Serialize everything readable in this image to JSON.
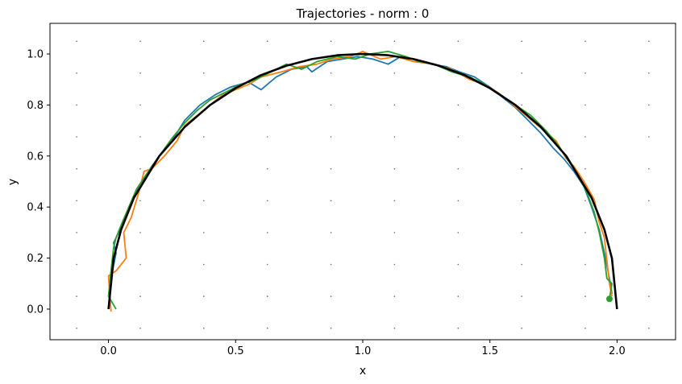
{
  "chart_data": {
    "type": "line",
    "title": "Trajectories - norm : 0",
    "xlabel": "x",
    "ylabel": "y",
    "xlim": [
      -0.23,
      2.23
    ],
    "ylim": [
      -0.12,
      1.12
    ],
    "xticks": [
      0.0,
      0.5,
      1.0,
      1.5,
      2.0
    ],
    "yticks": [
      0.0,
      0.2,
      0.4,
      0.6,
      0.8,
      1.0
    ],
    "xtick_labels": [
      "0.0",
      "0.5",
      "1.0",
      "1.5",
      "2.0"
    ],
    "ytick_labels": [
      "0.0",
      "0.2",
      "0.4",
      "0.6",
      "0.8",
      "1.0"
    ],
    "grid": "dotted points",
    "reference_curve": {
      "description": "semicircle center (1, 0), radius 1",
      "color": "#000000",
      "x": [
        0.0,
        0.02,
        0.05,
        0.1,
        0.2,
        0.3,
        0.4,
        0.5,
        0.6,
        0.7,
        0.8,
        0.9,
        1.0,
        1.1,
        1.2,
        1.3,
        1.4,
        1.5,
        1.6,
        1.7,
        1.8,
        1.9,
        1.95,
        1.98,
        2.0
      ],
      "y": [
        0.0,
        0.199,
        0.312,
        0.436,
        0.6,
        0.714,
        0.8,
        0.866,
        0.917,
        0.954,
        0.98,
        0.995,
        1.0,
        0.995,
        0.98,
        0.954,
        0.917,
        0.866,
        0.8,
        0.714,
        0.6,
        0.436,
        0.312,
        0.199,
        0.0
      ]
    },
    "series": [
      {
        "color": "#1f77b4",
        "x": [
          0.0,
          0.01,
          0.03,
          0.02,
          0.05,
          0.08,
          0.12,
          0.17,
          0.2,
          0.25,
          0.3,
          0.36,
          0.42,
          0.48,
          0.55,
          0.6,
          0.66,
          0.72,
          0.78,
          0.8,
          0.86,
          0.92,
          0.98,
          1.04,
          1.1,
          1.15,
          1.2,
          1.27,
          1.33,
          1.38,
          1.44,
          1.5,
          1.55,
          1.6,
          1.65,
          1.7,
          1.75,
          1.79,
          1.83,
          1.87,
          1.9,
          1.93,
          1.95,
          1.97,
          1.98
        ],
        "y": [
          0.05,
          0.12,
          0.22,
          0.26,
          0.32,
          0.4,
          0.48,
          0.56,
          0.6,
          0.66,
          0.74,
          0.8,
          0.84,
          0.87,
          0.89,
          0.86,
          0.91,
          0.94,
          0.95,
          0.93,
          0.97,
          0.98,
          0.99,
          0.98,
          0.96,
          0.99,
          0.98,
          0.96,
          0.95,
          0.93,
          0.91,
          0.87,
          0.83,
          0.79,
          0.74,
          0.69,
          0.63,
          0.59,
          0.54,
          0.48,
          0.4,
          0.31,
          0.22,
          0.12,
          0.06
        ]
      },
      {
        "color": "#ff7f0e",
        "x": [
          0.01,
          0.0,
          0.03,
          0.07,
          0.06,
          0.09,
          0.12,
          0.14,
          0.17,
          0.22,
          0.27,
          0.3,
          0.35,
          0.4,
          0.45,
          0.5,
          0.55,
          0.6,
          0.68,
          0.75,
          0.82,
          0.88,
          0.95,
          1.0,
          1.07,
          1.13,
          1.2,
          1.28,
          1.35,
          1.42,
          1.48,
          1.53,
          1.58,
          1.64,
          1.7,
          1.76,
          1.8,
          1.83,
          1.87,
          1.91,
          1.93,
          1.95,
          1.97,
          1.98
        ],
        "y": [
          -0.01,
          0.13,
          0.15,
          0.2,
          0.3,
          0.36,
          0.46,
          0.54,
          0.55,
          0.6,
          0.66,
          0.72,
          0.76,
          0.8,
          0.84,
          0.86,
          0.88,
          0.91,
          0.93,
          0.95,
          0.96,
          0.98,
          0.99,
          1.01,
          0.98,
          0.99,
          0.97,
          0.96,
          0.94,
          0.9,
          0.88,
          0.85,
          0.81,
          0.76,
          0.71,
          0.66,
          0.59,
          0.56,
          0.5,
          0.43,
          0.34,
          0.28,
          0.1,
          0.05
        ]
      },
      {
        "color": "#2ca02c",
        "x": [
          0.03,
          0.0,
          0.01,
          0.02,
          0.03,
          0.05,
          0.08,
          0.11,
          0.15,
          0.2,
          0.25,
          0.3,
          0.35,
          0.4,
          0.46,
          0.52,
          0.58,
          0.64,
          0.7,
          0.76,
          0.82,
          0.9,
          0.97,
          1.03,
          1.1,
          1.17,
          1.22,
          1.28,
          1.35,
          1.42,
          1.48,
          1.54,
          1.6,
          1.66,
          1.72,
          1.77,
          1.81,
          1.85,
          1.88,
          1.91,
          1.93,
          1.95,
          1.96,
          1.98,
          1.97
        ],
        "y": [
          0.0,
          0.05,
          0.15,
          0.24,
          0.28,
          0.33,
          0.4,
          0.47,
          0.53,
          0.6,
          0.67,
          0.73,
          0.78,
          0.82,
          0.85,
          0.88,
          0.9,
          0.93,
          0.96,
          0.94,
          0.97,
          0.99,
          0.98,
          1.0,
          1.01,
          0.99,
          0.97,
          0.96,
          0.93,
          0.91,
          0.88,
          0.84,
          0.8,
          0.76,
          0.7,
          0.64,
          0.58,
          0.52,
          0.46,
          0.38,
          0.3,
          0.2,
          0.12,
          0.1,
          0.04
        ]
      }
    ]
  }
}
